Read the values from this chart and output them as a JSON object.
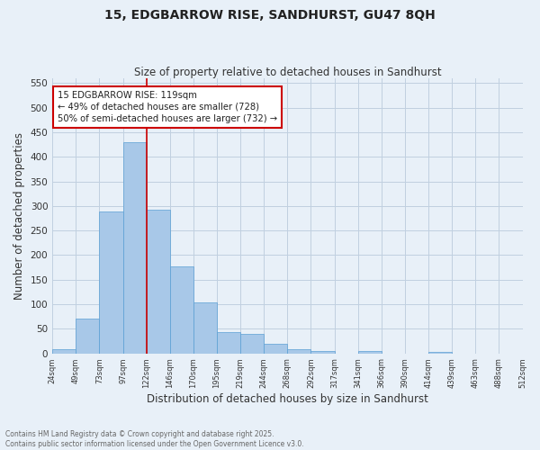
{
  "title": "15, EDGBARROW RISE, SANDHURST, GU47 8QH",
  "subtitle": "Size of property relative to detached houses in Sandhurst",
  "xlabel": "Distribution of detached houses by size in Sandhurst",
  "ylabel": "Number of detached properties",
  "bar_values": [
    8,
    70,
    288,
    430,
    293,
    177,
    104,
    43,
    40,
    20,
    8,
    5,
    0,
    4,
    0,
    0,
    3,
    0,
    0,
    0
  ],
  "bar_labels": [
    "24sqm",
    "49sqm",
    "73sqm",
    "97sqm",
    "122sqm",
    "146sqm",
    "170sqm",
    "195sqm",
    "219sqm",
    "244sqm",
    "268sqm",
    "292sqm",
    "317sqm",
    "341sqm",
    "366sqm",
    "390sqm",
    "414sqm",
    "439sqm",
    "463sqm",
    "488sqm",
    "512sqm"
  ],
  "bar_color": "#a8c8e8",
  "bar_edge_color": "#5a9fd4",
  "grid_color": "#c0d0e0",
  "bg_color": "#e8f0f8",
  "vline_color": "#cc0000",
  "annotation_text": "15 EDGBARROW RISE: 119sqm\n← 49% of detached houses are smaller (728)\n50% of semi-detached houses are larger (732) →",
  "annotation_box_color": "#ffffff",
  "annotation_box_edge": "#cc0000",
  "ylim": [
    0,
    560
  ],
  "yticks": [
    0,
    50,
    100,
    150,
    200,
    250,
    300,
    350,
    400,
    450,
    500,
    550
  ],
  "footer_line1": "Contains HM Land Registry data © Crown copyright and database right 2025.",
  "footer_line2": "Contains public sector information licensed under the Open Government Licence v3.0."
}
